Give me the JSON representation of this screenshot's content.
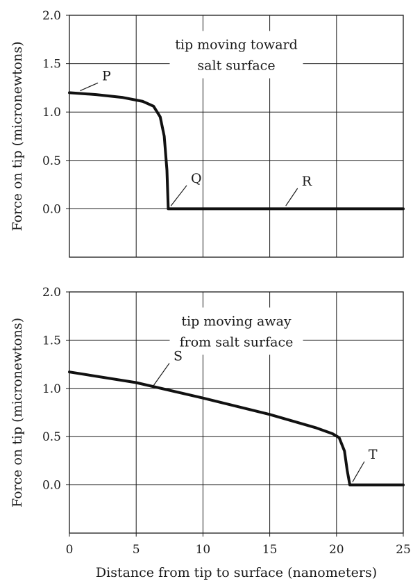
{
  "chart_data": [
    {
      "type": "line",
      "title": "",
      "xlim": [
        0,
        25
      ],
      "ylim": [
        -0.5,
        2.0
      ],
      "x_ticks": [],
      "y_ticks": [
        "2.0",
        "1.5",
        "1.0",
        "0.5",
        "0.0"
      ],
      "ylabel": "Force on tip (micronewtons)",
      "grid": true,
      "annotation": {
        "line1": "tip moving toward",
        "line2": "salt surface",
        "x": 12.5,
        "y": 1.55
      },
      "series": [
        {
          "points": [
            [
              0,
              1.2
            ],
            [
              2,
              1.18
            ],
            [
              4,
              1.15
            ],
            [
              5.5,
              1.11
            ],
            [
              6.3,
              1.06
            ],
            [
              6.8,
              0.95
            ],
            [
              7.1,
              0.75
            ],
            [
              7.3,
              0.4
            ],
            [
              7.4,
              0.0
            ],
            [
              10,
              0.0
            ],
            [
              15,
              0.0
            ],
            [
              20,
              0.0
            ],
            [
              25,
              0.0
            ]
          ]
        }
      ],
      "point_labels": [
        {
          "label": "P",
          "at": [
            0.8,
            1.22
          ],
          "text_at": [
            2.55,
            1.33
          ]
        },
        {
          "label": "Q",
          "at": [
            7.6,
            0.03
          ],
          "text_at": [
            9.2,
            0.27
          ]
        },
        {
          "label": "R",
          "at": [
            16.2,
            0.03
          ],
          "text_at": [
            17.5,
            0.24
          ]
        }
      ]
    },
    {
      "type": "line",
      "title": "",
      "xlim": [
        0,
        25
      ],
      "ylim": [
        -0.5,
        2.0
      ],
      "x_ticks": [
        "0",
        "5",
        "10",
        "15",
        "20",
        "25"
      ],
      "y_ticks": [
        "2.0",
        "1.5",
        "1.0",
        "0.5",
        "0.0"
      ],
      "ylabel": "Force on tip (micronewtons)",
      "xlabel": "Distance from tip to surface (nanometers)",
      "grid": true,
      "annotation": {
        "line1": "tip moving away",
        "line2": "from salt surface",
        "x": 12.5,
        "y": 1.55
      },
      "series": [
        {
          "points": [
            [
              0,
              1.17
            ],
            [
              5,
              1.06
            ],
            [
              10,
              0.9
            ],
            [
              15,
              0.73
            ],
            [
              18.5,
              0.59
            ],
            [
              19.7,
              0.53
            ],
            [
              20.2,
              0.49
            ],
            [
              20.6,
              0.35
            ],
            [
              20.8,
              0.15
            ],
            [
              21,
              0.0
            ],
            [
              25,
              0.0
            ]
          ]
        }
      ],
      "point_labels": [
        {
          "label": "S",
          "at": [
            6.3,
            1.03
          ],
          "text_at": [
            7.9,
            1.29
          ]
        },
        {
          "label": "T",
          "at": [
            21.2,
            0.03
          ],
          "text_at": [
            22.5,
            0.27
          ]
        }
      ]
    }
  ]
}
